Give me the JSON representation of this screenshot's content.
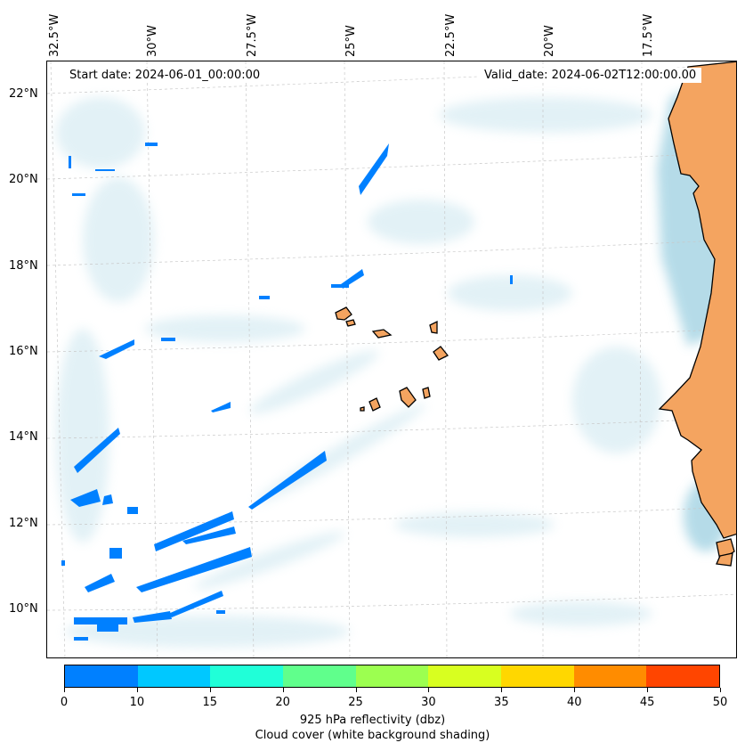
{
  "map": {
    "start_date": "Start date: 2024-06-01_00:00:00",
    "valid_date": "Valid_date: 2024-06-02T12:00:00.00",
    "lon_labels": [
      "32.5°W",
      "30°W",
      "27.5°W",
      "25°W",
      "22.5°W",
      "20°W",
      "17.5°W"
    ],
    "lat_labels": [
      "22°N",
      "20°N",
      "18°N",
      "16°N",
      "14°N",
      "12°N",
      "10°N"
    ],
    "land_color": "#f4a460",
    "cloud_color": "#add8e6",
    "reflectivity_0_10_color": "#0080ff"
  },
  "colorbar": {
    "ticks": [
      "0",
      "10",
      "15",
      "20",
      "25",
      "30",
      "35",
      "40",
      "45",
      "50"
    ],
    "colors": [
      "#0080ff",
      "#00c8ff",
      "#20ffd8",
      "#60ff8c",
      "#9cff50",
      "#d8ff20",
      "#ffd700",
      "#ff8c00",
      "#ff4500"
    ],
    "label": "925 hPa reflectivity (dbz)",
    "sublabel": "Cloud cover (white background shading)"
  }
}
